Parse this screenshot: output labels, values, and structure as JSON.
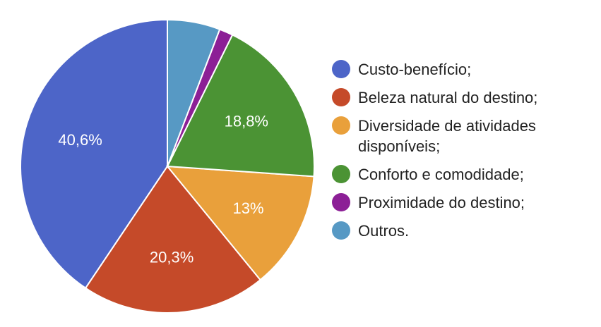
{
  "chart_data": {
    "type": "pie",
    "title": "",
    "slices": [
      {
        "label": "Custo-benefício;",
        "value": 40.6,
        "display": "40,6%",
        "color": "#4d65c8",
        "show_label": true
      },
      {
        "label": "Beleza natural do destino;",
        "value": 20.3,
        "display": "20,3%",
        "color": "#c54a29",
        "show_label": true
      },
      {
        "label": "Diversidade de atividades disponíveis;",
        "value": 13.0,
        "display": "13%",
        "color": "#e9a03b",
        "show_label": true
      },
      {
        "label": "Conforto e comodidade;",
        "value": 18.8,
        "display": "18,8%",
        "color": "#4b9334",
        "show_label": true
      },
      {
        "label": "Proximidade do destino;",
        "value": 1.5,
        "display": "",
        "color": "#8c1f96",
        "show_label": false
      },
      {
        "label": "Outros.",
        "value": 5.8,
        "display": "",
        "color": "#5799c4",
        "show_label": false
      }
    ],
    "legend_placement": "right",
    "start_angle_deg": 90,
    "direction": "counterclockwise"
  },
  "legend": {
    "items": [
      {
        "label": "Custo-benefício;",
        "color": "#4d65c8"
      },
      {
        "label": "Beleza natural do destino;",
        "color": "#c54a29"
      },
      {
        "label": "Diversidade de atividades disponíveis;",
        "color": "#e9a03b"
      },
      {
        "label": "Conforto e comodidade;",
        "color": "#4b9334"
      },
      {
        "label": "Proximidade do destino;",
        "color": "#8c1f96"
      },
      {
        "label": "Outros.",
        "color": "#5799c4"
      }
    ]
  }
}
